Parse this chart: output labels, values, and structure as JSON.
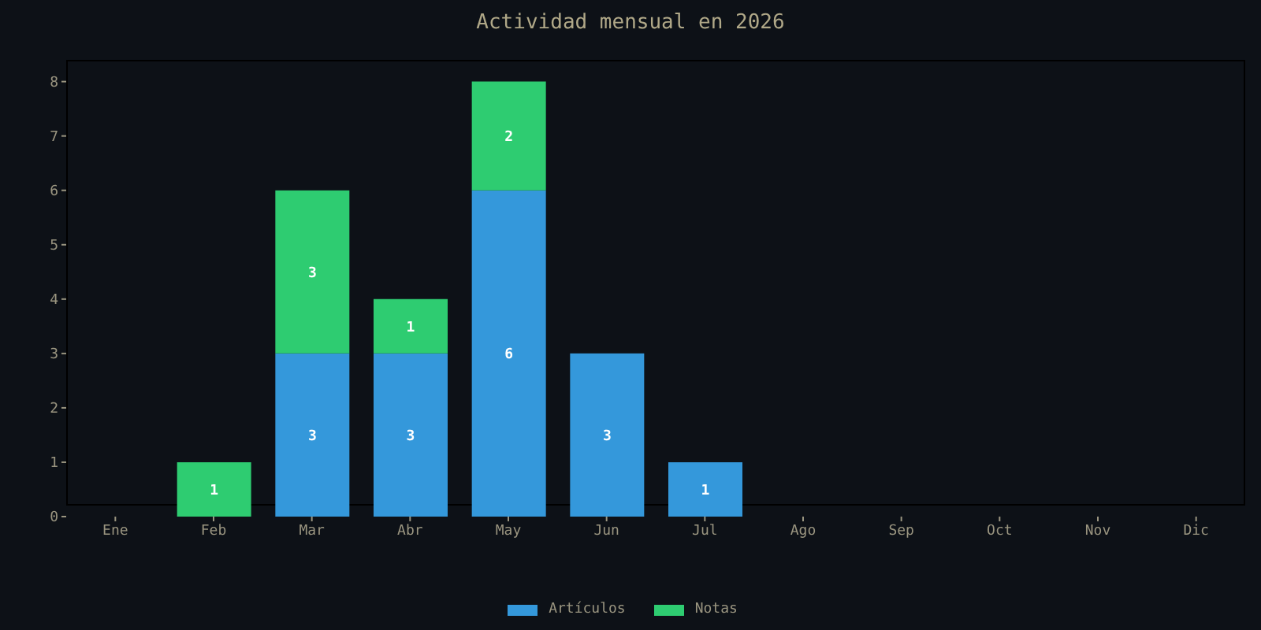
{
  "chart_data": {
    "type": "bar",
    "title": "Actividad mensual en 2026",
    "categories": [
      "Ene",
      "Feb",
      "Mar",
      "Abr",
      "May",
      "Jun",
      "Jul",
      "Ago",
      "Sep",
      "Oct",
      "Nov",
      "Dic"
    ],
    "series": [
      {
        "name": "Artículos",
        "color": "#3498db",
        "values": [
          null,
          null,
          3,
          3,
          6,
          3,
          1,
          null,
          null,
          null,
          null,
          null
        ]
      },
      {
        "name": "Notas",
        "color": "#2ecc71",
        "values": [
          null,
          1,
          3,
          1,
          2,
          null,
          null,
          null,
          null,
          null,
          null,
          null
        ]
      }
    ],
    "stacked": true,
    "ylim": [
      0,
      8.4
    ],
    "yticks": [
      0,
      1,
      2,
      3,
      4,
      5,
      6,
      7,
      8
    ],
    "grid": false,
    "legend": "bottom",
    "data_labels": true
  }
}
